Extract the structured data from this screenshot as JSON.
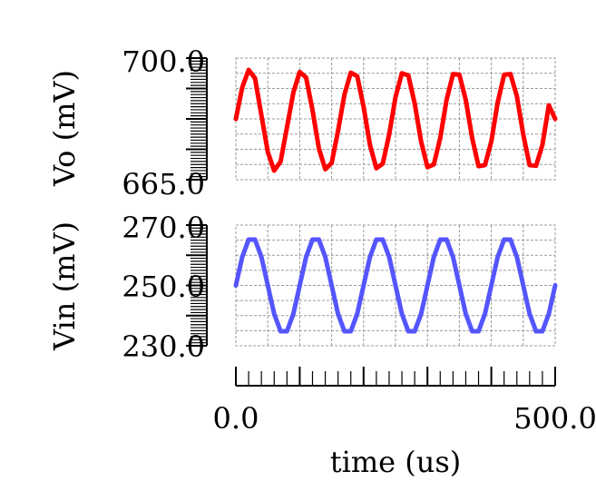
{
  "chart_data": [
    {
      "type": "line",
      "ylabel": "Vo (mV)",
      "ylim": [
        665.0,
        700.0
      ],
      "yticks": [
        "700.0",
        "665.0"
      ],
      "grid": true,
      "color": "#ff0000",
      "series": [
        {
          "x": [
            0,
            10,
            20,
            30,
            40,
            50,
            60,
            70,
            80,
            90,
            100,
            110,
            120,
            130,
            140,
            150,
            160,
            170,
            180,
            190,
            200,
            210,
            220,
            230,
            240,
            250,
            260,
            270,
            280,
            290,
            300,
            310,
            320,
            330,
            340,
            350,
            360,
            370,
            380,
            390,
            400,
            410,
            420,
            430,
            440,
            450,
            460,
            470,
            480,
            490,
            500
          ],
          "values": [
            682.5,
            691.5,
            696.6,
            694.2,
            683.5,
            673.0,
            667.6,
            670.2,
            680.0,
            690.1,
            696.0,
            694.4,
            685.0,
            674.0,
            668.0,
            669.8,
            679.0,
            689.5,
            695.8,
            694.8,
            686.0,
            675.0,
            668.3,
            669.6,
            678.0,
            688.8,
            695.6,
            695.0,
            687.0,
            676.0,
            668.6,
            669.4,
            677.0,
            688.0,
            695.4,
            695.2,
            688.0,
            677.0,
            668.9,
            669.2,
            676.0,
            687.2,
            695.2,
            695.4,
            689.0,
            678.0,
            669.2,
            669.0,
            675.0,
            686.4,
            682.5
          ]
        }
      ]
    },
    {
      "type": "line",
      "ylabel": "Vin (mV)",
      "ylim": [
        230.0,
        270.0
      ],
      "yticks": [
        "270.0",
        "250.0",
        "230.0"
      ],
      "grid": true,
      "color": "#5555ff",
      "series": [
        {
          "x": [
            0,
            10,
            20,
            30,
            40,
            50,
            60,
            70,
            80,
            90,
            100,
            110,
            120,
            130,
            140,
            150,
            160,
            170,
            180,
            190,
            200,
            210,
            220,
            230,
            240,
            250,
            260,
            270,
            280,
            290,
            300,
            310,
            320,
            330,
            340,
            350,
            360,
            370,
            380,
            390,
            400,
            410,
            420,
            430,
            440,
            450,
            460,
            470,
            480,
            490,
            500
          ],
          "values": [
            250.0,
            259.4,
            265.2,
            265.2,
            259.4,
            250.0,
            240.6,
            234.8,
            234.8,
            240.6,
            250.0,
            259.4,
            265.2,
            265.2,
            259.4,
            250.0,
            240.6,
            234.8,
            234.8,
            240.6,
            250.0,
            259.4,
            265.2,
            265.2,
            259.4,
            250.0,
            240.6,
            234.8,
            234.8,
            240.6,
            250.0,
            259.4,
            265.2,
            265.2,
            259.4,
            250.0,
            240.6,
            234.8,
            234.8,
            240.6,
            250.0,
            259.4,
            265.2,
            265.2,
            259.4,
            250.0,
            240.6,
            234.8,
            234.8,
            240.6,
            250.0
          ]
        }
      ]
    }
  ],
  "x_axis": {
    "label": "time (us)",
    "xlim": [
      0.0,
      500.0
    ],
    "tick_labels": [
      "0.0",
      "500.0"
    ]
  }
}
